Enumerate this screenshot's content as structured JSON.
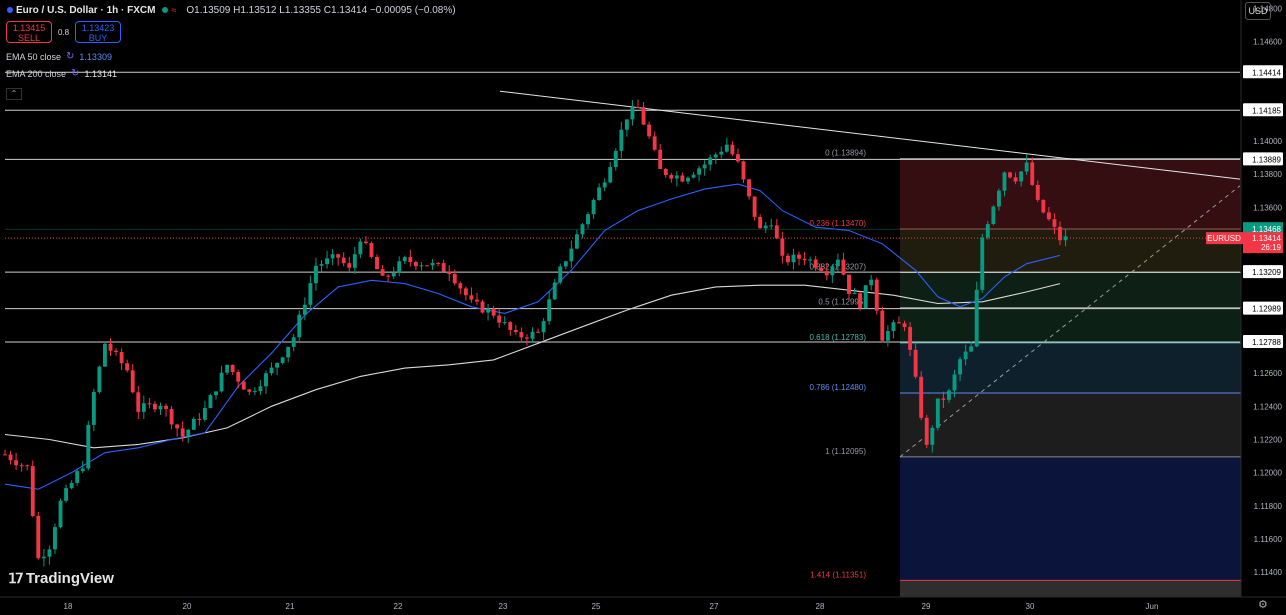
{
  "header": {
    "symbol": "Euro / U.S. Dollar · 1h · FXCM",
    "open": "O1.13509",
    "high": "H1.13512",
    "low": "L1.13355",
    "close": "C1.13414",
    "change": "−0.00095 (−0.08%)"
  },
  "trade": {
    "sell_price": "1.13415",
    "sell_label": "SELL",
    "spread": "0.8",
    "buy_price": "1.13423",
    "buy_label": "BUY"
  },
  "indicators": [
    {
      "label": "EMA 50 close",
      "value": "1.13309",
      "color": "#5b8def"
    },
    {
      "label": "EMA 200 close",
      "value": "1.13141",
      "color": "#e6e6e6"
    }
  ],
  "currency": "USD",
  "logo": "TradingView",
  "colors": {
    "up": "#089981",
    "down": "#f23645",
    "ema50": "#2962ff",
    "ema200": "#d9d9d9"
  },
  "chart_data": {
    "type": "candlestick",
    "title": "Euro / U.S. Dollar · 1h · FXCM",
    "ylim": [
      1.1125,
      1.1485
    ],
    "y_ticks": [
      "1.14800",
      "1.14600",
      "1.14000",
      "1.13800",
      "1.13600",
      "1.12600",
      "1.12400",
      "1.12200",
      "1.12000",
      "1.11800",
      "1.11600",
      "1.11400"
    ],
    "x_ticks": [
      "18",
      "20",
      "21",
      "22",
      "23",
      "25",
      "27",
      "28",
      "29",
      "30",
      "Jun"
    ],
    "horizontal_levels": [
      "1.14414",
      "1.14185",
      "1.13889",
      "1.13209",
      "1.12989",
      "1.12788"
    ],
    "current_price": {
      "symbol": "EURUSD",
      "value": "1.13414",
      "countdown": "26:19",
      "marker": "1.13468"
    },
    "fibonacci": [
      {
        "label": "0 (1.13894)",
        "ratio": 0
      },
      {
        "label": "0.236 (1.13470)",
        "ratio": 0.236
      },
      {
        "label": "0.382 (1.13207)",
        "ratio": 0.382
      },
      {
        "label": "0.5 (1.12995)",
        "ratio": 0.5
      },
      {
        "label": "0.618 (1.12783)",
        "ratio": 0.618
      },
      {
        "label": "0.786 (1.12480)",
        "ratio": 0.786
      },
      {
        "label": "1 (1.12095)",
        "ratio": 1
      },
      {
        "label": "1.414 (1.11351)",
        "ratio": 1.414
      }
    ],
    "trendline_start": 1.143,
    "trendline_end": 1.1377,
    "price_path": [
      [
        0,
        1.1211
      ],
      [
        2,
        1.1203
      ],
      [
        3,
        1.1148
      ],
      [
        4,
        1.1156
      ],
      [
        5,
        1.1182
      ],
      [
        7,
        1.1205
      ],
      [
        8,
        1.1248
      ],
      [
        9,
        1.1278
      ],
      [
        11,
        1.1262
      ],
      [
        12,
        1.1238
      ],
      [
        14,
        1.1242
      ],
      [
        16,
        1.1222
      ],
      [
        18,
        1.1238
      ],
      [
        20,
        1.1265
      ],
      [
        22,
        1.1248
      ],
      [
        24,
        1.1262
      ],
      [
        26,
        1.1282
      ],
      [
        28,
        1.1325
      ],
      [
        30,
        1.133
      ],
      [
        31,
        1.1322
      ],
      [
        32,
        1.1342
      ],
      [
        34,
        1.1316
      ],
      [
        36,
        1.1328
      ],
      [
        38,
        1.1326
      ],
      [
        40,
        1.1322
      ],
      [
        42,
        1.1302
      ],
      [
        44,
        1.1296
      ],
      [
        46,
        1.1282
      ],
      [
        48,
        1.1284
      ],
      [
        50,
        1.1322
      ],
      [
        52,
        1.135
      ],
      [
        54,
        1.1378
      ],
      [
        56,
        1.1415
      ],
      [
        57,
        1.142
      ],
      [
        58,
        1.1402
      ],
      [
        59,
        1.1382
      ],
      [
        61,
        1.1378
      ],
      [
        63,
        1.1386
      ],
      [
        65,
        1.1398
      ],
      [
        66,
        1.1386
      ],
      [
        67,
        1.1365
      ],
      [
        68,
        1.1346
      ],
      [
        69,
        1.1352
      ],
      [
        70,
        1.1328
      ],
      [
        72,
        1.133
      ],
      [
        74,
        1.1322
      ],
      [
        75,
        1.133
      ],
      [
        76,
        1.131
      ],
      [
        77,
        1.1302
      ],
      [
        78,
        1.1318
      ],
      [
        79,
        1.1282
      ],
      [
        80,
        1.1288
      ],
      [
        81,
        1.129
      ],
      [
        82,
        1.1255
      ],
      [
        83,
        1.1215
      ],
      [
        84,
        1.1242
      ],
      [
        85,
        1.1248
      ],
      [
        86,
        1.1268
      ],
      [
        87,
        1.1275
      ],
      [
        88,
        1.1342
      ],
      [
        89,
        1.1362
      ],
      [
        90,
        1.1382
      ],
      [
        91,
        1.1378
      ],
      [
        92,
        1.1385
      ],
      [
        93,
        1.1362
      ],
      [
        94,
        1.1352
      ],
      [
        95,
        1.1341
      ]
    ],
    "ema50_path": [
      [
        0,
        1.1193
      ],
      [
        3,
        1.119
      ],
      [
        6,
        1.12
      ],
      [
        9,
        1.1212
      ],
      [
        12,
        1.1215
      ],
      [
        15,
        1.122
      ],
      [
        18,
        1.1224
      ],
      [
        21,
        1.1252
      ],
      [
        24,
        1.1272
      ],
      [
        27,
        1.1295
      ],
      [
        30,
        1.1312
      ],
      [
        33,
        1.1316
      ],
      [
        36,
        1.1314
      ],
      [
        39,
        1.1308
      ],
      [
        42,
        1.13
      ],
      [
        45,
        1.1296
      ],
      [
        48,
        1.1303
      ],
      [
        51,
        1.1322
      ],
      [
        54,
        1.1346
      ],
      [
        57,
        1.1358
      ],
      [
        60,
        1.1365
      ],
      [
        63,
        1.1371
      ],
      [
        66,
        1.1374
      ],
      [
        68,
        1.137
      ],
      [
        70,
        1.1358
      ],
      [
        73,
        1.1348
      ],
      [
        76,
        1.1346
      ],
      [
        79,
        1.1338
      ],
      [
        82,
        1.1322
      ],
      [
        84,
        1.1306
      ],
      [
        86,
        1.13
      ],
      [
        88,
        1.1305
      ],
      [
        90,
        1.1318
      ],
      [
        92,
        1.1326
      ],
      [
        95,
        1.1331
      ]
    ],
    "ema200_path": [
      [
        0,
        1.1223
      ],
      [
        4,
        1.122
      ],
      [
        8,
        1.1215
      ],
      [
        12,
        1.1217
      ],
      [
        16,
        1.1221
      ],
      [
        20,
        1.1227
      ],
      [
        24,
        1.124
      ],
      [
        28,
        1.125
      ],
      [
        32,
        1.1258
      ],
      [
        36,
        1.1263
      ],
      [
        40,
        1.1265
      ],
      [
        44,
        1.1268
      ],
      [
        48,
        1.1278
      ],
      [
        52,
        1.1288
      ],
      [
        56,
        1.1298
      ],
      [
        60,
        1.1307
      ],
      [
        64,
        1.1312
      ],
      [
        68,
        1.1313
      ],
      [
        72,
        1.1313
      ],
      [
        76,
        1.131
      ],
      [
        80,
        1.1307
      ],
      [
        84,
        1.1302
      ],
      [
        88,
        1.1303
      ],
      [
        92,
        1.1309
      ],
      [
        95,
        1.1314
      ]
    ]
  }
}
